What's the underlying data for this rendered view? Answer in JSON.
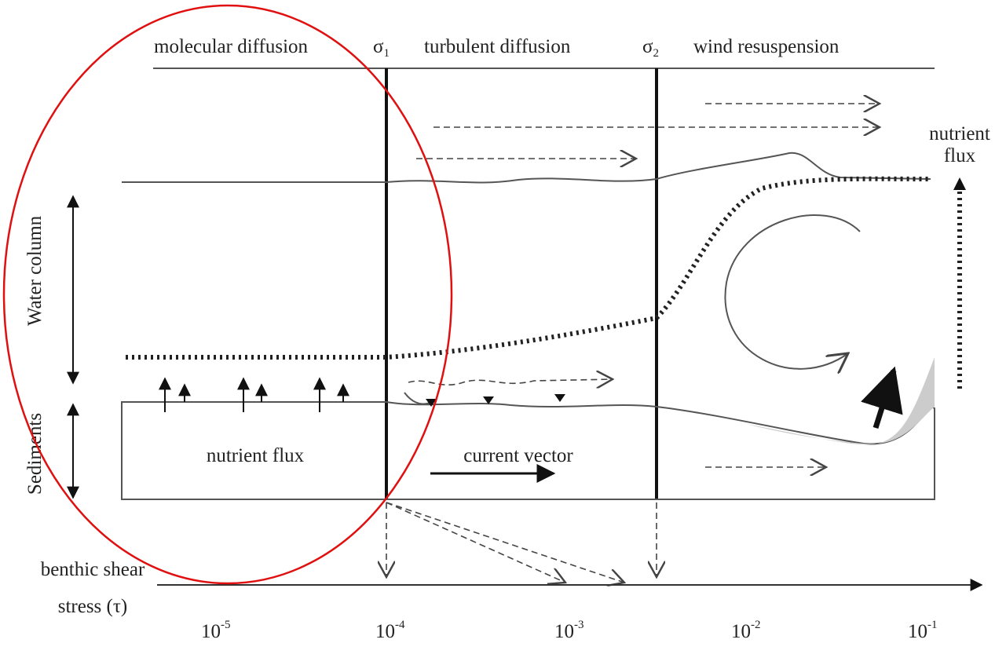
{
  "regimes": [
    {
      "label": "molecular diffusion"
    },
    {
      "threshold": {
        "symbol": "σ",
        "subscript": "1"
      },
      "label": "turbulent diffusion"
    },
    {
      "threshold": {
        "symbol": "σ",
        "subscript": "2"
      },
      "label": "wind resuspension"
    }
  ],
  "right_label": [
    "nutrient",
    "flux"
  ],
  "side_labels": [
    "Water column",
    "Sediments"
  ],
  "inner_labels": [
    "nutrient flux",
    "current vector"
  ],
  "axis": {
    "title": [
      "benthic shear",
      "stress (τ)"
    ],
    "ticks": [
      {
        "base": "10",
        "exponent": "-5"
      },
      {
        "base": "10",
        "exponent": "-4"
      },
      {
        "base": "10",
        "exponent": "-3"
      },
      {
        "base": "10",
        "exponent": "-2"
      },
      {
        "base": "10",
        "exponent": "-1"
      }
    ]
  }
}
